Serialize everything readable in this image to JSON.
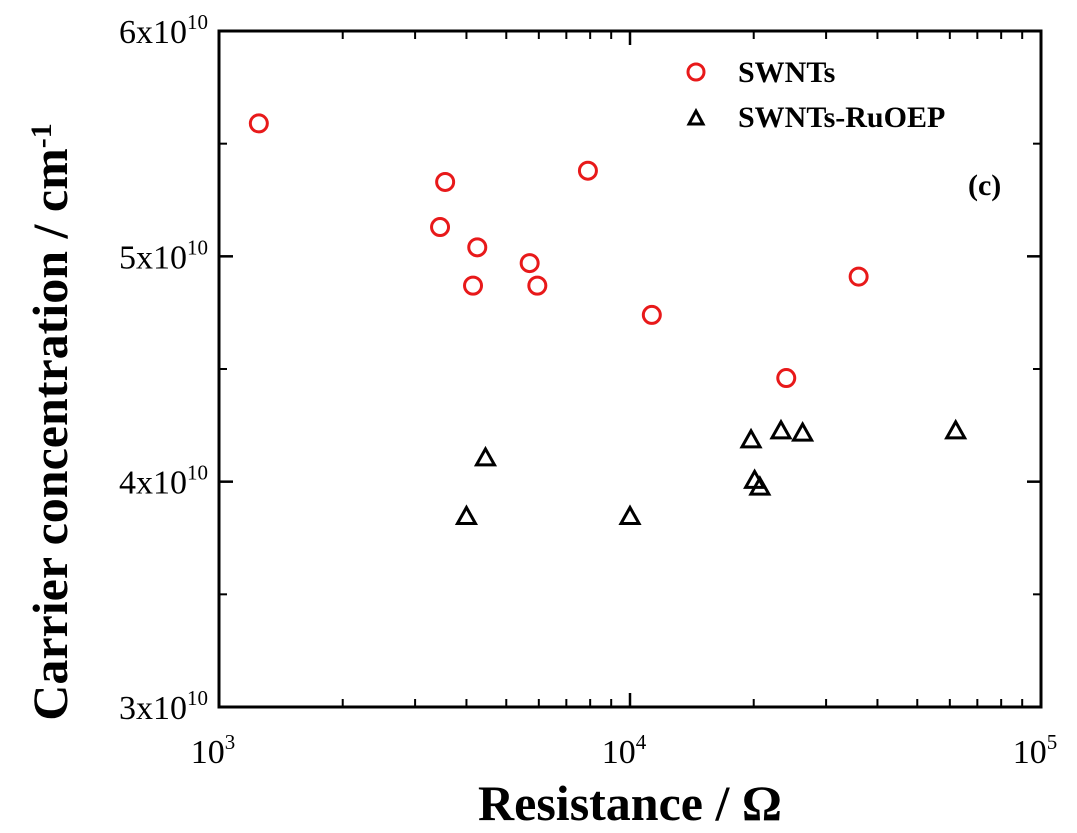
{
  "chart_data": {
    "type": "scatter",
    "xscale": "log",
    "xlim": [
      1000,
      100000
    ],
    "ylim": [
      30000000000,
      60000000000
    ],
    "xlabel": "Resistance / Ω",
    "ylabel_main": "Carrier concentration / cm",
    "ylabel_sup": "-1",
    "annotation": "(c)",
    "legend_position": "top-right",
    "grid": false,
    "x_ticks": [
      {
        "value": 1000,
        "base": "10",
        "exp": "3"
      },
      {
        "value": 10000,
        "base": "10",
        "exp": "4"
      },
      {
        "value": 100000,
        "base": "10",
        "exp": "5"
      }
    ],
    "y_ticks": [
      {
        "value": 30000000000,
        "base": "3x10",
        "exp": "10"
      },
      {
        "value": 40000000000,
        "base": "4x10",
        "exp": "10"
      },
      {
        "value": 50000000000,
        "base": "5x10",
        "exp": "10"
      },
      {
        "value": 60000000000,
        "base": "6x10",
        "exp": "10"
      }
    ],
    "series": [
      {
        "name": "SWNTs",
        "marker": "circle",
        "color": "#e8191a",
        "points": [
          {
            "x": 1250,
            "y": 55900000000
          },
          {
            "x": 3450,
            "y": 51300000000
          },
          {
            "x": 3550,
            "y": 53300000000
          },
          {
            "x": 4150,
            "y": 48700000000
          },
          {
            "x": 4250,
            "y": 50400000000
          },
          {
            "x": 5700,
            "y": 49700000000
          },
          {
            "x": 5950,
            "y": 48700000000
          },
          {
            "x": 7900,
            "y": 53800000000
          },
          {
            "x": 11300,
            "y": 47400000000
          },
          {
            "x": 24000,
            "y": 44600000000
          },
          {
            "x": 36000,
            "y": 49100000000
          }
        ]
      },
      {
        "name": "SWNTs-RuOEP",
        "marker": "triangle",
        "color": "#000000",
        "points": [
          {
            "x": 4000,
            "y": 38500000000
          },
          {
            "x": 4450,
            "y": 41100000000
          },
          {
            "x": 10000,
            "y": 38500000000
          },
          {
            "x": 19700,
            "y": 41900000000
          },
          {
            "x": 20100,
            "y": 40100000000
          },
          {
            "x": 20700,
            "y": 39800000000
          },
          {
            "x": 23300,
            "y": 42300000000
          },
          {
            "x": 26300,
            "y": 42200000000
          },
          {
            "x": 62000,
            "y": 42300000000
          }
        ]
      }
    ]
  }
}
